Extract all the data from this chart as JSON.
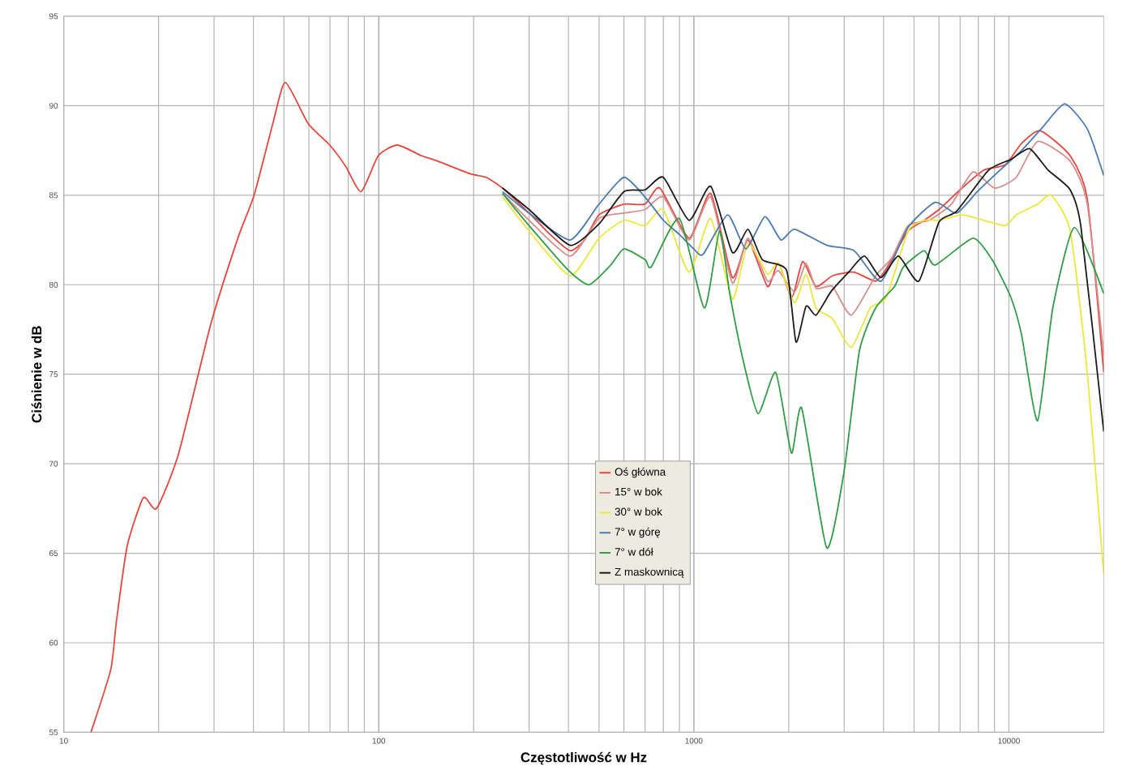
{
  "chart_data": {
    "type": "line",
    "xlabel": "Częstotliwość w Hz",
    "ylabel": "Ciśnienie w dB",
    "log": "x",
    "xlim": [
      10,
      20000
    ],
    "xticks": [
      10,
      100,
      1000,
      10000
    ],
    "ylim": [
      55,
      95
    ],
    "yticks": [
      55,
      60,
      65,
      70,
      75,
      80,
      85,
      90,
      95
    ],
    "grid": true,
    "legend": "bottom",
    "line_style": "solid",
    "series": [
      {
        "name": "Oś główna",
        "color": "#e8463c",
        "x": [
          12.2,
          14.1,
          14.7,
          15.9,
          17.9,
          19.7,
          23.1,
          29.3,
          35.7,
          40.2,
          46.1,
          50.5,
          59.7,
          69.9,
          78.6,
          87.9,
          99.6,
          114.5,
          136.8,
          154,
          195,
          219,
          247,
          300,
          350,
          405,
          450,
          500,
          600,
          700,
          780,
          966,
          1131,
          1325,
          1485,
          1713,
          1853,
          2047,
          2215,
          2443,
          2754,
          3225,
          3776,
          4083,
          4786,
          5386,
          6000,
          7096,
          8318,
          9743,
          10970,
          12590,
          15650,
          17730,
          20000
        ],
        "values": [
          55.0,
          58.5,
          61.2,
          65.4,
          68.1,
          67.5,
          70.5,
          77.8,
          82.6,
          85.0,
          89.0,
          91.3,
          89.0,
          87.8,
          86.6,
          85.2,
          87.2,
          87.8,
          87.2,
          86.9,
          86.2,
          86.0,
          85.4,
          84.0,
          82.8,
          81.9,
          82.5,
          83.9,
          84.5,
          84.5,
          85.4,
          82.6,
          85.1,
          80.4,
          82.5,
          79.9,
          81.2,
          79.3,
          81.3,
          79.9,
          80.5,
          80.7,
          80.2,
          80.9,
          83.0,
          83.6,
          84.2,
          85.4,
          86.4,
          86.7,
          87.9,
          88.6,
          87.2,
          84.8,
          75.1
        ]
      },
      {
        "name": "15° w bok",
        "color": "#d98c8c",
        "x": [
          247,
          300,
          405,
          500,
          600,
          700,
          800,
          966,
          1131,
          1325,
          1485,
          1713,
          1853,
          2087,
          2271,
          2443,
          2754,
          3160,
          3776,
          4250,
          4786,
          5580,
          6570,
          7690,
          9000,
          10550,
          12330,
          15650,
          17730,
          20000
        ],
        "values": [
          85.1,
          83.6,
          81.6,
          83.7,
          84.0,
          84.2,
          84.9,
          82.5,
          84.9,
          80.1,
          82.6,
          80.2,
          80.8,
          79.6,
          81.2,
          79.8,
          79.9,
          78.3,
          80.5,
          81.5,
          83.3,
          83.6,
          84.5,
          86.3,
          85.4,
          86.0,
          88.0,
          86.9,
          84.5,
          76.0
        ]
      },
      {
        "name": "30° w bok",
        "color": "#ece83a",
        "x": [
          247,
          300,
          405,
          500,
          600,
          700,
          800,
          966,
          1131,
          1325,
          1485,
          1713,
          1853,
          2087,
          2271,
          2443,
          2754,
          3160,
          3630,
          4083,
          4786,
          5386,
          6000,
          7096,
          8318,
          9743,
          10550,
          12330,
          13610,
          15650,
          17730,
          20000
        ],
        "values": [
          84.9,
          83.0,
          80.5,
          82.6,
          83.6,
          83.3,
          84.2,
          80.7,
          83.7,
          79.2,
          82.3,
          80.6,
          81.2,
          79.0,
          80.6,
          78.7,
          78.1,
          76.5,
          78.7,
          79.3,
          83.0,
          83.6,
          83.6,
          83.9,
          83.6,
          83.3,
          83.9,
          84.5,
          85.0,
          83.0,
          75.1,
          63.8
        ]
      },
      {
        "name": "7° w górę",
        "color": "#4a7ab0",
        "x": [
          247,
          300,
          405,
          500,
          600,
          700,
          800,
          900,
          1000,
          1070,
          1280,
          1462,
          1680,
          1890,
          2087,
          2645,
          3225,
          3930,
          4786,
          5834,
          6823,
          7940,
          9370,
          10970,
          12800,
          15040,
          17730,
          20000
        ],
        "values": [
          85.2,
          84.0,
          82.5,
          84.5,
          86.0,
          84.9,
          83.6,
          82.8,
          82.0,
          81.7,
          83.9,
          82.0,
          83.8,
          82.5,
          83.1,
          82.2,
          81.9,
          80.2,
          83.2,
          84.6,
          84.0,
          85.2,
          86.4,
          87.5,
          88.8,
          90.1,
          88.7,
          86.1
        ]
      },
      {
        "name": "7° w dół",
        "color": "#2f9e44",
        "x": [
          247,
          300,
          400,
          465,
          545,
          600,
          700,
          733,
          900,
          1080,
          1206,
          1300,
          1437,
          1600,
          1820,
          2040,
          2200,
          2640,
          3000,
          3353,
          3776,
          4335,
          4630,
          5386,
          5834,
          7690,
          8840,
          10140,
          10970,
          12330,
          13780,
          16130,
          20000
        ],
        "values": [
          85.1,
          83.3,
          80.8,
          80.0,
          81.1,
          82.0,
          81.4,
          81.0,
          83.7,
          78.7,
          83.0,
          79.5,
          75.7,
          72.8,
          75.1,
          70.6,
          73.1,
          65.3,
          69.6,
          76.3,
          78.7,
          79.9,
          81.0,
          81.9,
          81.1,
          82.6,
          81.4,
          79.3,
          77.2,
          72.4,
          78.7,
          83.2,
          79.5
        ]
      },
      {
        "name": "Z maskownicą",
        "color": "#1a1a1a",
        "x": [
          247,
          300,
          405,
          500,
          600,
          700,
          800,
          966,
          1131,
          1325,
          1485,
          1650,
          1970,
          2110,
          2271,
          2443,
          2720,
          3100,
          3480,
          3930,
          4460,
          5176,
          6000,
          6823,
          8620,
          10140,
          11630,
          13320,
          15650,
          16940,
          20000
        ],
        "values": [
          85.4,
          84.2,
          82.2,
          83.4,
          85.2,
          85.3,
          86.0,
          83.6,
          85.5,
          81.8,
          83.1,
          81.4,
          80.8,
          76.8,
          78.8,
          78.3,
          79.6,
          80.7,
          81.6,
          80.4,
          81.6,
          80.2,
          83.5,
          84.1,
          86.4,
          87.0,
          87.6,
          86.4,
          85.3,
          83.2,
          71.8
        ]
      }
    ]
  }
}
